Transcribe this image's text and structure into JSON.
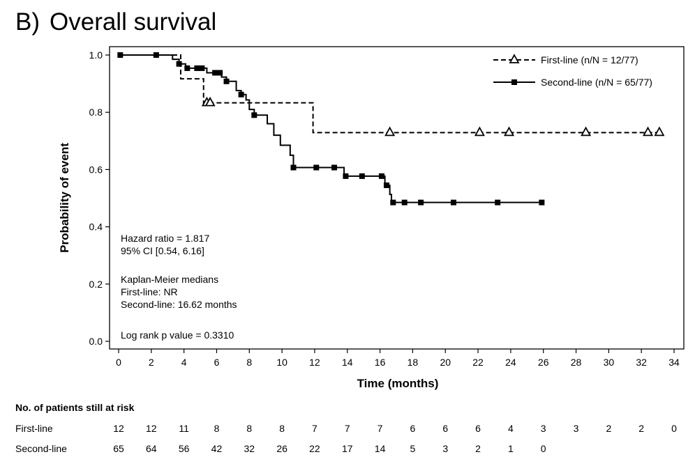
{
  "panel": {
    "label": "B)",
    "title": "Overall survival"
  },
  "chart_data": {
    "type": "line",
    "subtype": "kaplan-meier",
    "xlabel": "Time (months)",
    "ylabel": "Probability of event",
    "xlim": [
      0,
      34
    ],
    "ylim": [
      0,
      1
    ],
    "x_ticks": [
      0,
      2,
      4,
      6,
      8,
      10,
      12,
      14,
      16,
      18,
      20,
      22,
      24,
      26,
      28,
      30,
      32,
      34
    ],
    "x_tick_labels": [
      "0",
      "2",
      "4",
      "6",
      "8",
      "10",
      "12",
      "14",
      "16",
      "18",
      "20",
      "22",
      "24",
      "26",
      "28",
      "30",
      "32",
      "34"
    ],
    "y_ticks": [
      0,
      0.2,
      0.4,
      0.6,
      0.8,
      1.0
    ],
    "y_tick_labels": [
      "0.0",
      "0.2",
      "0.4",
      "0.6",
      "0.8",
      "1.0"
    ],
    "legend_position": "top-right",
    "series": [
      {
        "name": "First-line (n/N = 12/77)",
        "line_style": "dashed",
        "marker": "open-triangle",
        "color": "#000000",
        "steps": [
          [
            0,
            1.0
          ],
          [
            3.8,
            0.917
          ],
          [
            5.2,
            0.833
          ],
          [
            11.9,
            0.729
          ]
        ],
        "end_x": 33.1,
        "censor_times": [
          5.4,
          5.6,
          16.6,
          22.1,
          23.9,
          28.6,
          32.4,
          33.1
        ]
      },
      {
        "name": "Second-line (n/N = 65/77)",
        "line_style": "solid",
        "marker": "filled-square",
        "color": "#000000",
        "steps": [
          [
            0,
            1.0
          ],
          [
            3.3,
            0.985
          ],
          [
            3.7,
            0.969
          ],
          [
            4.1,
            0.954
          ],
          [
            5.4,
            0.938
          ],
          [
            6.3,
            0.923
          ],
          [
            6.6,
            0.908
          ],
          [
            7.2,
            0.876
          ],
          [
            7.5,
            0.862
          ],
          [
            7.8,
            0.843
          ],
          [
            8.0,
            0.81
          ],
          [
            8.3,
            0.79
          ],
          [
            9.1,
            0.76
          ],
          [
            9.5,
            0.72
          ],
          [
            9.9,
            0.685
          ],
          [
            10.5,
            0.65
          ],
          [
            10.7,
            0.607
          ],
          [
            13.8,
            0.577
          ],
          [
            16.3,
            0.545
          ],
          [
            16.6,
            0.513
          ],
          [
            16.7,
            0.485
          ]
        ],
        "end_x": 25.9,
        "censor_times": [
          0.1,
          2.3,
          3.7,
          4.2,
          4.8,
          5.1,
          5.9,
          6.2,
          6.6,
          7.5,
          8.3,
          10.7,
          12.1,
          13.2,
          13.9,
          14.9,
          16.1,
          16.4,
          16.8,
          17.5,
          18.5,
          20.5,
          23.2,
          25.9
        ]
      }
    ],
    "annotations": {
      "hazard": [
        "Hazard ratio = 1.817",
        "95% CI [0.54, 6.16]"
      ],
      "medians": [
        "Kaplan-Meier medians",
        "First-line: NR",
        "Second-line: 16.62 months"
      ],
      "logrank": "Log rank p value = 0.3310"
    },
    "risk_table": {
      "title": "No. of patients still at risk",
      "times": [
        0,
        2,
        4,
        6,
        8,
        10,
        12,
        14,
        16,
        18,
        20,
        22,
        24,
        26,
        28,
        30,
        32,
        34
      ],
      "rows": [
        {
          "label": "First-line",
          "counts": [
            "12",
            "12",
            "11",
            "8",
            "8",
            "8",
            "7",
            "7",
            "7",
            "6",
            "6",
            "6",
            "4",
            "3",
            "3",
            "2",
            "2",
            "0"
          ]
        },
        {
          "label": "Second-line",
          "counts": [
            "65",
            "64",
            "56",
            "42",
            "32",
            "26",
            "22",
            "17",
            "14",
            "5",
            "3",
            "2",
            "1",
            "0"
          ]
        }
      ]
    }
  }
}
